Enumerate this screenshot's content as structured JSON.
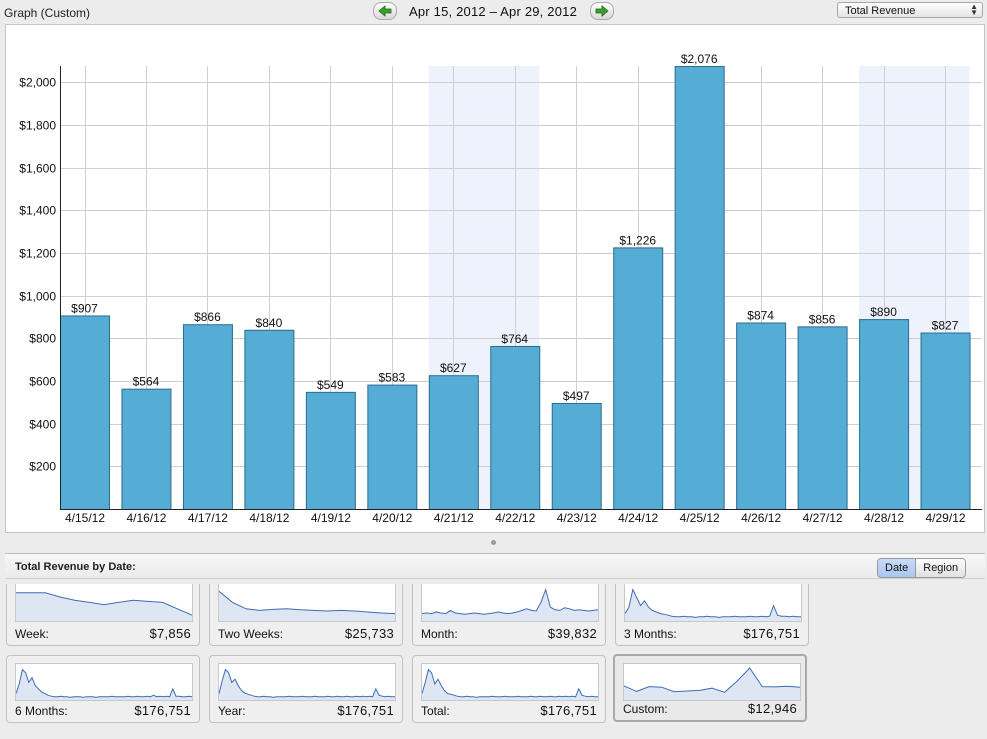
{
  "header": {
    "graph_title": "Graph (Custom)",
    "date_range": "Apr 15, 2012 – Apr 29, 2012",
    "metric_selected": "Total Revenue",
    "prev_icon": "arrow-left-icon",
    "next_icon": "arrow-right-icon"
  },
  "chart_data": {
    "type": "bar",
    "categories": [
      "4/15/12",
      "4/16/12",
      "4/17/12",
      "4/18/12",
      "4/19/12",
      "4/20/12",
      "4/21/12",
      "4/22/12",
      "4/23/12",
      "4/24/12",
      "4/25/12",
      "4/26/12",
      "4/27/12",
      "4/28/12",
      "4/29/12"
    ],
    "values": [
      907,
      564,
      866,
      840,
      549,
      583,
      627,
      764,
      497,
      1226,
      2076,
      874,
      856,
      890,
      827
    ],
    "value_labels": [
      "$907",
      "$564",
      "$866",
      "$840",
      "$549",
      "$583",
      "$627",
      "$764",
      "$497",
      "$1,226",
      "$2,076",
      "$874",
      "$856",
      "$890",
      "$827"
    ],
    "yticks": [
      200,
      400,
      600,
      800,
      1000,
      1200,
      1400,
      1600,
      1800,
      2000
    ],
    "ytick_labels": [
      "$200",
      "$400",
      "$600",
      "$800",
      "$1,000",
      "$1,200",
      "$1,400",
      "$1,600",
      "$1,800",
      "$2,000"
    ],
    "ylim": [
      0,
      2076
    ],
    "weekend_bands": [
      [
        "4/21/12",
        "4/22/12"
      ],
      [
        "4/28/12",
        "4/29/12"
      ]
    ],
    "grid": true,
    "colors": {
      "bar": "#55acd5",
      "bar_border": "#2a6d8f",
      "weekend": "#eef2fc",
      "grid": "#cfcfcf"
    }
  },
  "summary": {
    "title": "Total Revenue by Date:",
    "toggle": [
      {
        "label": "Date",
        "active": true
      },
      {
        "label": "Region",
        "active": false
      }
    ],
    "tiles": [
      {
        "label": "Week:",
        "value": "$7,856",
        "selected": false,
        "spark": [
          0.85,
          0.85,
          0.85,
          0.72,
          0.62,
          0.55,
          0.48,
          0.55,
          0.62,
          0.58,
          0.55,
          0.35,
          0.15
        ]
      },
      {
        "label": "Two Weeks:",
        "value": "$25,733",
        "selected": false,
        "spark": [
          0.9,
          0.55,
          0.35,
          0.3,
          0.33,
          0.35,
          0.32,
          0.3,
          0.28,
          0.3,
          0.28,
          0.25,
          0.22,
          0.2
        ]
      },
      {
        "label": "Month:",
        "value": "$39,832",
        "selected": false,
        "spark": [
          0.2,
          0.22,
          0.2,
          0.25,
          0.22,
          0.2,
          0.3,
          0.22,
          0.2,
          0.18,
          0.2,
          0.22,
          0.2,
          0.18,
          0.2,
          0.22,
          0.25,
          0.22,
          0.2,
          0.22,
          0.25,
          0.3,
          0.35,
          0.3,
          0.28,
          0.55,
          0.95,
          0.4,
          0.32,
          0.3,
          0.38,
          0.35,
          0.3,
          0.32,
          0.3,
          0.28,
          0.3,
          0.32
        ]
      },
      {
        "label": "3 Months:",
        "value": "$176,751",
        "selected": false,
        "spark": [
          0.2,
          0.4,
          0.95,
          0.7,
          0.45,
          0.6,
          0.4,
          0.3,
          0.25,
          0.2,
          0.18,
          0.15,
          0.12,
          0.1,
          0.1,
          0.12,
          0.1,
          0.1,
          0.08,
          0.1,
          0.1,
          0.12,
          0.1,
          0.1,
          0.08,
          0.1,
          0.1,
          0.1,
          0.12,
          0.1,
          0.1,
          0.1,
          0.12,
          0.1,
          0.1,
          0.12,
          0.1,
          0.12,
          0.45,
          0.15,
          0.12,
          0.12,
          0.1,
          0.12,
          0.1,
          0.1
        ]
      },
      {
        "label": "6 Months:",
        "value": "$176,751",
        "selected": false,
        "spark": [
          0.2,
          0.5,
          0.95,
          0.85,
          0.55,
          0.7,
          0.45,
          0.35,
          0.25,
          0.2,
          0.15,
          0.12,
          0.1,
          0.1,
          0.12,
          0.1,
          0.1,
          0.08,
          0.1,
          0.1,
          0.1,
          0.08,
          0.1,
          0.1,
          0.1,
          0.08,
          0.1,
          0.1,
          0.1,
          0.1,
          0.12,
          0.1,
          0.1,
          0.1,
          0.1,
          0.12,
          0.1,
          0.1,
          0.12,
          0.1,
          0.1,
          0.12,
          0.1,
          0.15,
          0.1,
          0.12,
          0.1,
          0.12,
          0.1,
          0.35,
          0.12,
          0.12,
          0.1,
          0.1,
          0.12,
          0.1
        ]
      },
      {
        "label": "Year:",
        "value": "$176,751",
        "selected": false,
        "spark": [
          0.2,
          0.6,
          0.95,
          0.85,
          0.55,
          0.65,
          0.45,
          0.3,
          0.22,
          0.18,
          0.15,
          0.12,
          0.1,
          0.1,
          0.12,
          0.1,
          0.1,
          0.08,
          0.1,
          0.1,
          0.1,
          0.1,
          0.12,
          0.1,
          0.1,
          0.1,
          0.12,
          0.1,
          0.1,
          0.1,
          0.12,
          0.1,
          0.1,
          0.1,
          0.12,
          0.1,
          0.1,
          0.12,
          0.1,
          0.1,
          0.12,
          0.1,
          0.1,
          0.12,
          0.1,
          0.12,
          0.1,
          0.12,
          0.1,
          0.35,
          0.15,
          0.12,
          0.1,
          0.12,
          0.1,
          0.1
        ]
      },
      {
        "label": "Total:",
        "value": "$176,751",
        "selected": false,
        "spark": [
          0.2,
          0.55,
          0.95,
          0.85,
          0.5,
          0.65,
          0.45,
          0.3,
          0.2,
          0.18,
          0.15,
          0.12,
          0.1,
          0.1,
          0.12,
          0.1,
          0.1,
          0.08,
          0.1,
          0.1,
          0.1,
          0.1,
          0.12,
          0.1,
          0.1,
          0.1,
          0.12,
          0.1,
          0.1,
          0.1,
          0.12,
          0.1,
          0.1,
          0.1,
          0.12,
          0.1,
          0.1,
          0.12,
          0.1,
          0.1,
          0.12,
          0.1,
          0.1,
          0.12,
          0.1,
          0.12,
          0.1,
          0.12,
          0.1,
          0.35,
          0.15,
          0.12,
          0.1,
          0.12,
          0.1,
          0.1
        ]
      },
      {
        "label": "Custom:",
        "value": "$12,946",
        "selected": true,
        "spark": [
          0.44,
          0.27,
          0.42,
          0.4,
          0.26,
          0.28,
          0.3,
          0.37,
          0.24,
          0.59,
          1.0,
          0.42,
          0.41,
          0.43,
          0.4
        ]
      }
    ]
  }
}
